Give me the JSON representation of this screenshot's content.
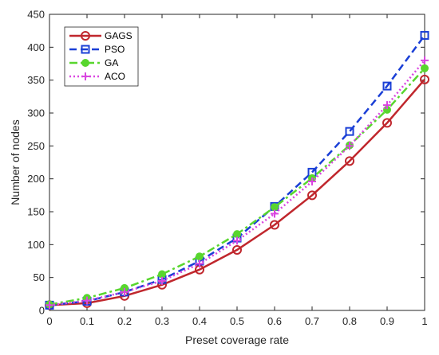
{
  "chart_data": {
    "type": "line",
    "xlabel": "Preset coverage rate",
    "ylabel": "Number of nodes",
    "xlim": [
      0,
      1
    ],
    "ylim": [
      0,
      450
    ],
    "xticks": [
      "0",
      "0.1",
      "0.2",
      "0.3",
      "0.4",
      "0.5",
      "0.6",
      "0.7",
      "0.8",
      "0.9",
      "1"
    ],
    "yticks": [
      "0",
      "50",
      "100",
      "150",
      "200",
      "250",
      "300",
      "350",
      "400",
      "450"
    ],
    "x": [
      0,
      0.1,
      0.2,
      0.3,
      0.4,
      0.5,
      0.6,
      0.7,
      0.8,
      0.9,
      1.0
    ],
    "grid": false,
    "legend_position": "top-left",
    "series": [
      {
        "name": "GAGS",
        "color": "#c0272d",
        "line": "solid",
        "marker": "circle",
        "values": [
          8,
          11,
          22,
          39,
          62,
          92,
          130,
          175,
          227,
          285,
          351
        ]
      },
      {
        "name": "PSO",
        "color": "#1a3fd6",
        "line": "dashed",
        "marker": "square",
        "values": [
          8,
          14,
          28,
          47,
          75,
          110,
          158,
          210,
          272,
          341,
          418
        ]
      },
      {
        "name": "GA",
        "color": "#58d62e",
        "line": "dashdot",
        "marker": "dot",
        "values": [
          9,
          19,
          34,
          55,
          82,
          116,
          157,
          201,
          251,
          305,
          368
        ]
      },
      {
        "name": "ACO",
        "color": "#d946e0",
        "line": "dotted",
        "marker": "plus",
        "values": [
          8,
          15,
          28,
          45,
          71,
          106,
          147,
          196,
          250,
          312,
          380
        ]
      }
    ]
  }
}
